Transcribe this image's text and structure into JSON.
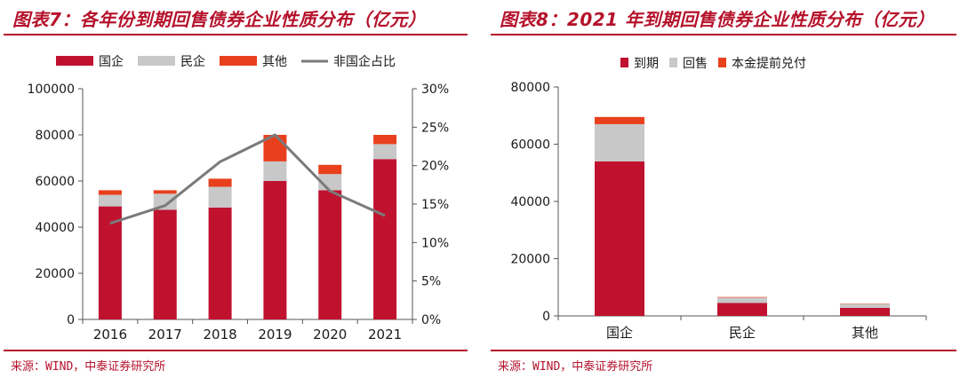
{
  "panels": [
    {
      "title": "图表7：各年份到期回售债券企业性质分布（亿元）",
      "source": "来源：WIND，中泰证券研究所"
    },
    {
      "title": "图表8：2021 年到期回售债券企业性质分布（亿元）",
      "source": "来源：WIND，中泰证券研究所"
    }
  ],
  "chart_data": [
    {
      "type": "bar",
      "stacked": true,
      "title": "图表7：各年份到期回售债券企业性质分布（亿元）",
      "categories": [
        "2016",
        "2017",
        "2018",
        "2019",
        "2020",
        "2021"
      ],
      "series": [
        {
          "name": "国企",
          "color": "#c0122f",
          "values": [
            49000,
            47500,
            48500,
            60000,
            56000,
            69500
          ]
        },
        {
          "name": "民企",
          "color": "#c8c8c8",
          "values": [
            5000,
            7000,
            9000,
            8500,
            7000,
            6500
          ]
        },
        {
          "name": "其他",
          "color": "#e8401c",
          "values": [
            2000,
            1500,
            3500,
            11500,
            4000,
            4000
          ]
        }
      ],
      "line_series": {
        "name": "非国企占比",
        "color": "#7a7a7a",
        "axis": "right",
        "values": [
          0.125,
          0.148,
          0.205,
          0.24,
          0.167,
          0.135
        ]
      },
      "ylim": [
        0,
        100000
      ],
      "y_ticks": [
        "0",
        "20000",
        "40000",
        "60000",
        "80000",
        "100000"
      ],
      "y2lim": [
        0,
        0.3
      ],
      "y2_ticks": [
        "0%",
        "5%",
        "10%",
        "15%",
        "20%",
        "25%",
        "30%"
      ],
      "legend": "top",
      "grid": false
    },
    {
      "type": "bar",
      "stacked": true,
      "title": "图表8：2021 年到期回售债券企业性质分布（亿元）",
      "categories": [
        "国企",
        "民企",
        "其他"
      ],
      "series": [
        {
          "name": "到期",
          "color": "#c0122f",
          "values": [
            54000,
            4500,
            2800
          ]
        },
        {
          "name": "回售",
          "color": "#c8c8c8",
          "values": [
            13000,
            1900,
            1300
          ]
        },
        {
          "name": "本金提前兑付",
          "color": "#e8401c",
          "values": [
            2500,
            200,
            150
          ]
        }
      ],
      "ylim": [
        0,
        80000
      ],
      "y_ticks": [
        "0",
        "20000",
        "40000",
        "60000",
        "80000"
      ],
      "legend": "top",
      "grid": false
    }
  ]
}
